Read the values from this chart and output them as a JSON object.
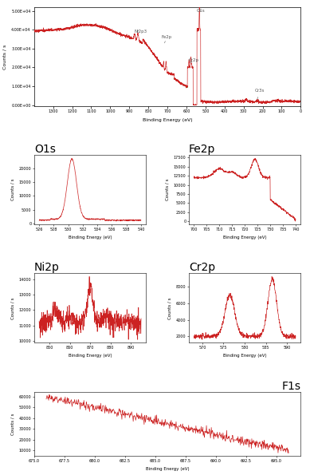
{
  "survey": {
    "xlim": [
      1400,
      0
    ],
    "ylim": [
      0,
      52000
    ],
    "yticks": [
      "0.00E+04",
      "1.00E+04",
      "2.00E+04",
      "3.00E+04",
      "4.00E+04",
      "5.00E+04"
    ],
    "ytick_vals": [
      0,
      10000,
      20000,
      30000,
      40000,
      50000
    ],
    "xticks": [
      1300,
      1200,
      1100,
      1000,
      900,
      800,
      700,
      600,
      500,
      400,
      300,
      200,
      100,
      0
    ],
    "xlabel": "Binding Energy (eV)",
    "ylabel": "Counts / s"
  },
  "line_color": "#cc2222",
  "green_color": "#00aa00",
  "bg_color": "#ffffff",
  "title_fontsize": 10,
  "tick_fontsize": 3.5,
  "axis_label_fontsize": 4.5
}
